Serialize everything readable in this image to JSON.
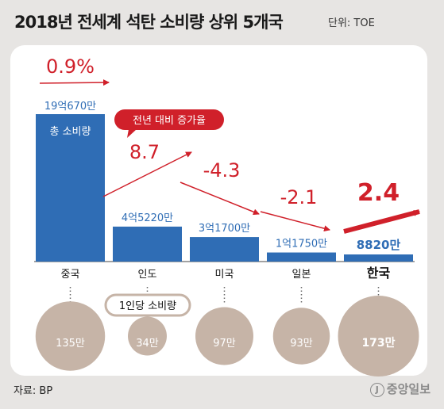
{
  "title": "2018년 전세계 석탄 소비량 상위 5개국",
  "unit": "단위: TOE",
  "source": "자료: BP",
  "logo_mark": "J",
  "logo_text": "중앙일보",
  "callouts": {
    "growth": "전년 대비 증가율",
    "per_capita": "1인당 소비량"
  },
  "total_label": "총 소비량",
  "colors": {
    "bar": "#2f6db5",
    "arrow": "#d0202a",
    "circle": "#c6b4a7",
    "value": "#2f6db5",
    "highlight_arrow": "#d0202a"
  },
  "chart_data": {
    "type": "bar",
    "title": "2018년 전세계 석탄 소비량 상위 5개국",
    "unit": "단위: TOE",
    "categories": [
      "중국",
      "인도",
      "미국",
      "일본",
      "한국"
    ],
    "series": [
      {
        "name": "총 소비량",
        "values": [
          1906700000,
          452200000,
          317000000,
          117500000,
          88200000
        ],
        "labels": [
          "19억670만",
          "4억5220만",
          "3억1700만",
          "1억1750만",
          "8820만"
        ]
      },
      {
        "name": "전년 대비 증가율",
        "values": [
          0.9,
          8.7,
          -4.3,
          -2.1,
          2.4
        ],
        "labels": [
          "0.9%",
          "8.7",
          "-4.3",
          "-2.1",
          "2.4"
        ]
      },
      {
        "name": "1인당 소비량",
        "values": [
          135,
          34,
          97,
          93,
          173
        ],
        "labels": [
          "135만",
          "34만",
          "97만",
          "93만",
          "173만"
        ]
      }
    ],
    "highlight": "한국"
  }
}
